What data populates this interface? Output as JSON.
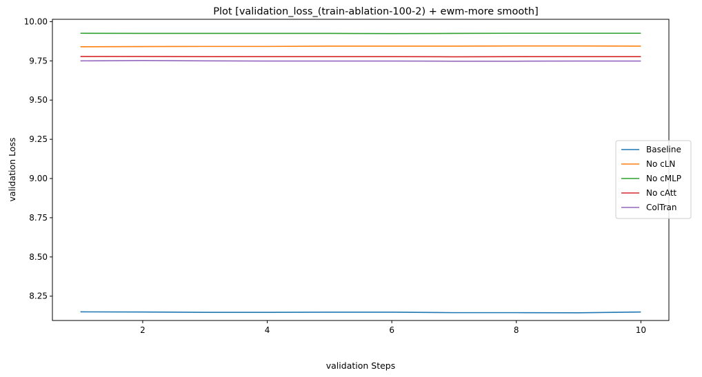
{
  "chart_data": {
    "type": "line",
    "title": "Plot [validation_loss_(train-ablation-100-2) + ewm-more smooth]",
    "xlabel": "validation Steps",
    "ylabel": "validation Loss",
    "xlim": [
      0.55,
      10.45
    ],
    "ylim": [
      8.095,
      10.015
    ],
    "xticks": [
      2,
      4,
      6,
      8,
      10
    ],
    "xtick_labels": [
      "2",
      "4",
      "6",
      "8",
      "10"
    ],
    "yticks": [
      8.25,
      8.5,
      8.75,
      9.0,
      9.25,
      9.5,
      9.75,
      10.0
    ],
    "ytick_labels": [
      "8.25",
      "8.50",
      "8.75",
      "9.00",
      "9.25",
      "9.50",
      "9.75",
      "10.00"
    ],
    "grid": false,
    "legend_position": "center-right",
    "x": [
      1,
      2,
      3,
      4,
      5,
      6,
      7,
      8,
      9,
      10
    ],
    "series": [
      {
        "name": "Baseline",
        "color": "#1f77b4",
        "values": [
          8.15,
          8.149,
          8.147,
          8.147,
          8.148,
          8.148,
          8.145,
          8.145,
          8.144,
          8.149
        ]
      },
      {
        "name": "No cLN",
        "color": "#ff7f0e",
        "values": [
          9.84,
          9.841,
          9.842,
          9.842,
          9.844,
          9.844,
          9.844,
          9.845,
          9.845,
          9.844
        ]
      },
      {
        "name": "No cMLP",
        "color": "#2ca02c",
        "values": [
          9.926,
          9.925,
          9.925,
          9.925,
          9.925,
          9.924,
          9.925,
          9.926,
          9.926,
          9.926
        ]
      },
      {
        "name": "No cAtt",
        "color": "#d62728",
        "values": [
          9.778,
          9.778,
          9.777,
          9.777,
          9.777,
          9.777,
          9.776,
          9.777,
          9.777,
          9.777
        ]
      },
      {
        "name": "ColTran",
        "color": "#9467bd",
        "values": [
          9.75,
          9.752,
          9.75,
          9.749,
          9.749,
          9.749,
          9.748,
          9.748,
          9.749,
          9.749
        ]
      }
    ]
  }
}
